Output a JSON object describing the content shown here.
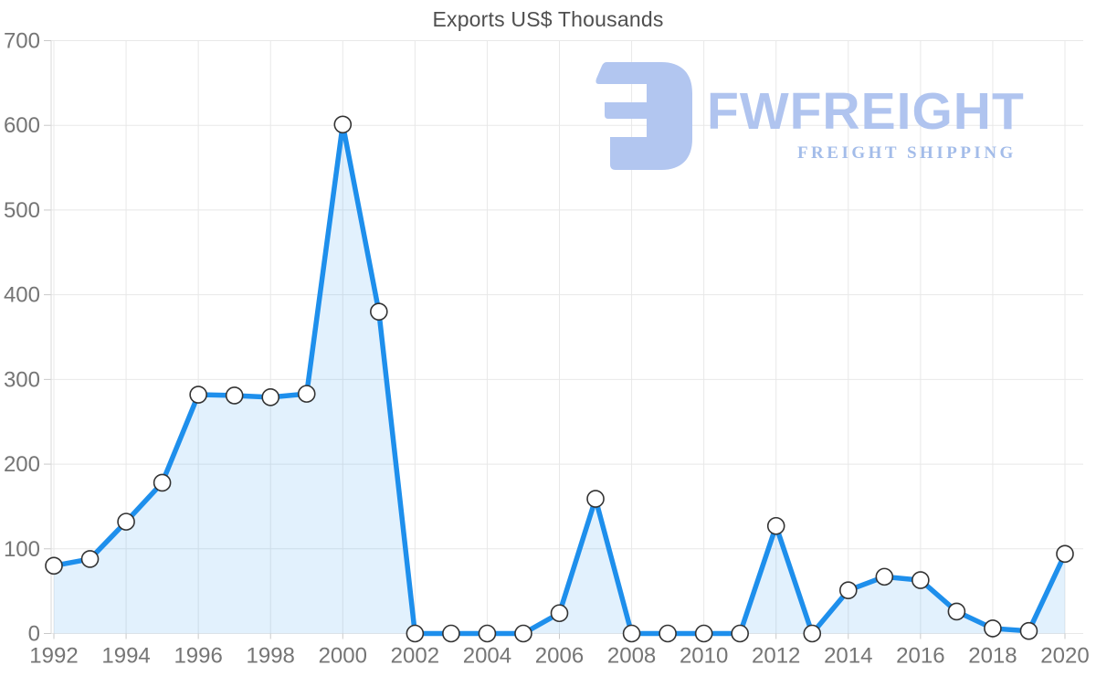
{
  "title": "Exports US$ Thousands",
  "watermark": {
    "brand": "FWFREIGHT",
    "tagline": "FREIGHT SHIPPING",
    "icon": "fwfreight-logo-icon",
    "icon_color": "#b2c6f0",
    "brand_color": "#b0c4ef",
    "tagline_color": "#a3bce9"
  },
  "colors": {
    "line": "#1e8fec",
    "area_fill": "rgba(30,143,236,0.13)",
    "marker_fill": "#ffffff",
    "marker_stroke": "#333333",
    "grid": "#e8e8e8",
    "axis_border": "#d9d9d9",
    "tick_mark": "#c9c9c9",
    "axis_text": "#757575",
    "title_text": "#4f4f4f"
  },
  "chart_data": {
    "type": "area",
    "title": "Exports US$ Thousands",
    "x": [
      1992,
      1993,
      1994,
      1995,
      1996,
      1997,
      1998,
      1999,
      2000,
      2001,
      2002,
      2003,
      2004,
      2005,
      2006,
      2007,
      2008,
      2009,
      2010,
      2011,
      2012,
      2013,
      2014,
      2015,
      2016,
      2017,
      2018,
      2019,
      2020
    ],
    "values": [
      80,
      88,
      132,
      178,
      282,
      281,
      279,
      283,
      601,
      380,
      0,
      0,
      0,
      0,
      24,
      159,
      0,
      0,
      0,
      0,
      127,
      0,
      51,
      67,
      63,
      26,
      6,
      3,
      94
    ],
    "series_name": "Exports US$ Thousands",
    "xlabel": "",
    "ylabel": "",
    "ylim": [
      0,
      700
    ],
    "y_ticks": [
      0,
      100,
      200,
      300,
      400,
      500,
      600,
      700
    ],
    "x_tick_labels": [
      "1992",
      "1994",
      "1996",
      "1998",
      "2000",
      "2002",
      "2004",
      "2006",
      "2008",
      "2010",
      "2012",
      "2014",
      "2016",
      "2018",
      "2020"
    ],
    "grid": true,
    "legend": false,
    "markers": true
  }
}
